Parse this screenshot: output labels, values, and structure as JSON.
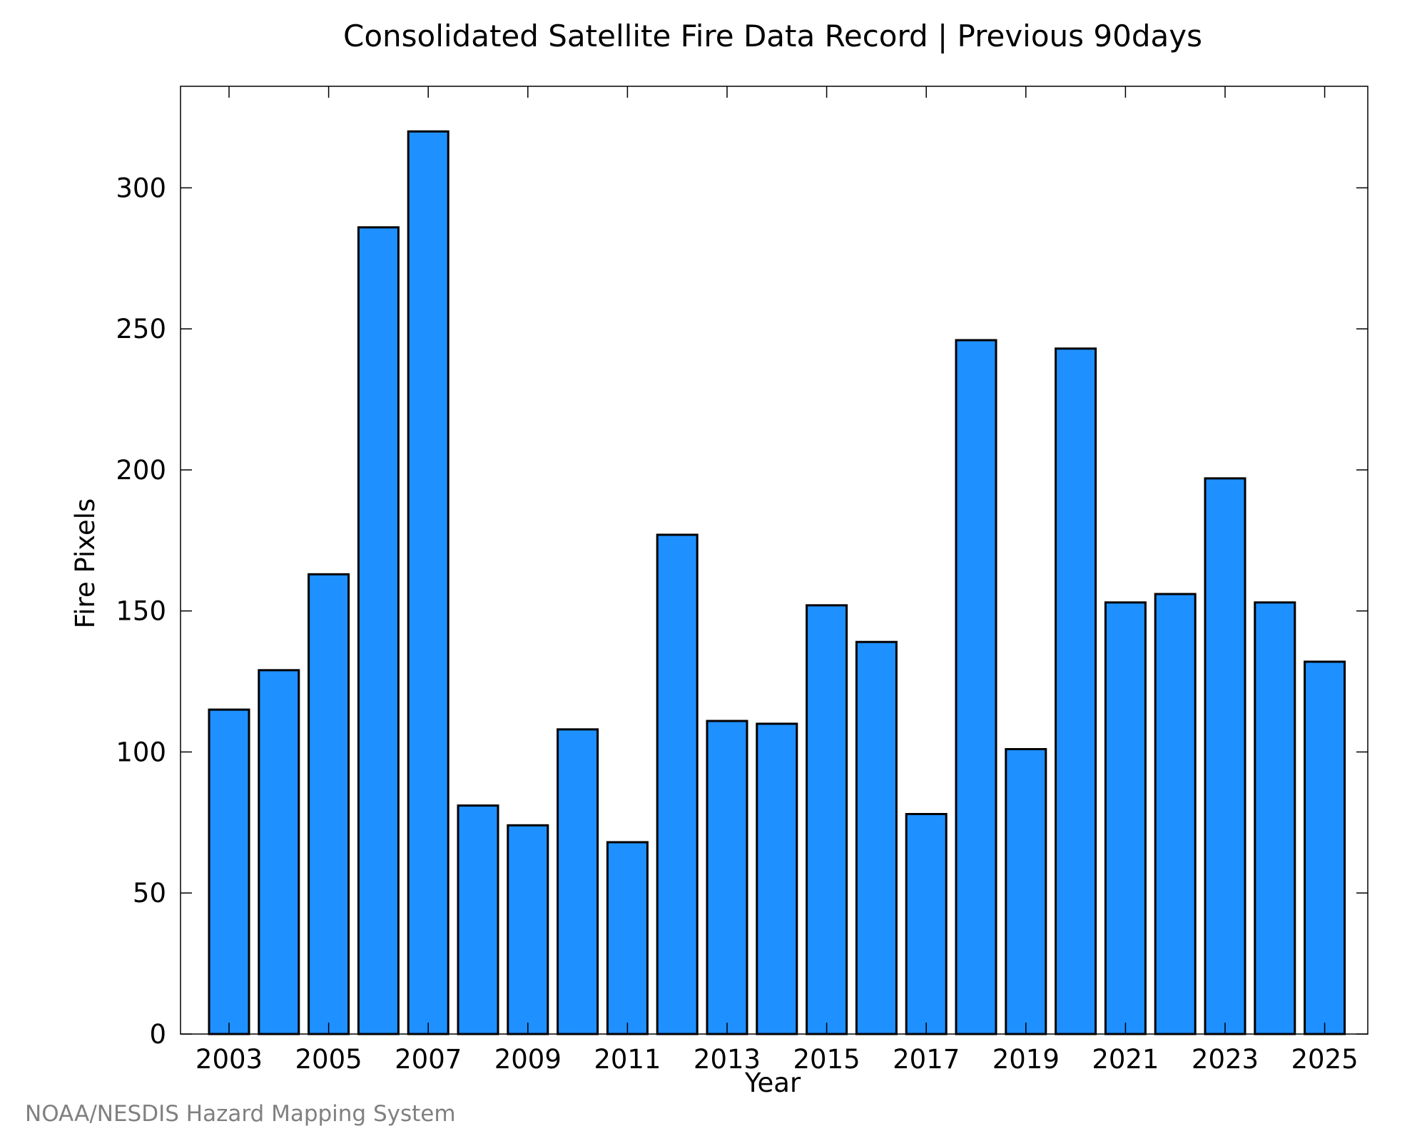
{
  "chart_data": {
    "type": "bar",
    "title": "Consolidated Satellite Fire Data Record | Previous 90days",
    "xlabel": "Year",
    "ylabel": "Fire Pixels",
    "categories": [
      "2003",
      "2004",
      "2005",
      "2006",
      "2007",
      "2008",
      "2009",
      "2010",
      "2011",
      "2012",
      "2013",
      "2014",
      "2015",
      "2016",
      "2017",
      "2018",
      "2019",
      "2020",
      "2021",
      "2022",
      "2023",
      "2024",
      "2025"
    ],
    "values": [
      115,
      129,
      163,
      286,
      320,
      81,
      74,
      108,
      68,
      177,
      111,
      110,
      152,
      139,
      78,
      246,
      101,
      243,
      153,
      156,
      197,
      153,
      132
    ],
    "x_tick_labels": [
      "2003",
      "2005",
      "2007",
      "2009",
      "2011",
      "2013",
      "2015",
      "2017",
      "2019",
      "2021",
      "2023",
      "2025"
    ],
    "y_ticks": [
      0,
      50,
      100,
      150,
      200,
      250,
      300
    ],
    "ylim": [
      0,
      336
    ],
    "bar_color": "#1e90ff",
    "grid": false,
    "legend": "none"
  },
  "footer": "NOAA/NESDIS Hazard Mapping System"
}
